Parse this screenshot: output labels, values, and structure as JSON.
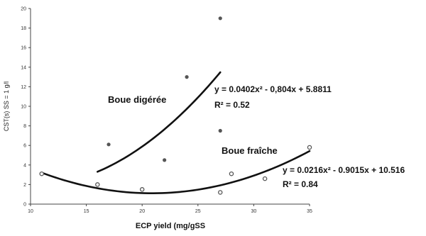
{
  "chart_data": {
    "type": "scatter",
    "title": "",
    "xlabel": "ECP yield (mg/gSS",
    "ylabel": "CST(s) SS = 1 g/l",
    "xlim": [
      10,
      35
    ],
    "ylim": [
      0,
      20
    ],
    "x_ticks": [
      10,
      15,
      20,
      25,
      30,
      35
    ],
    "y_ticks": [
      0,
      2,
      4,
      6,
      8,
      10,
      12,
      14,
      16,
      18,
      20
    ],
    "grid": false,
    "series": [
      {
        "name": "Boue digérée",
        "marker": "filled-circle",
        "color": "#555555",
        "points": [
          [
            17,
            6.1
          ],
          [
            22,
            4.5
          ],
          [
            24,
            13.0
          ],
          [
            27,
            19.0
          ],
          [
            27,
            7.5
          ]
        ],
        "trend": {
          "equation": "y = 0.0402x² - 0,804x + 5.8811",
          "r2_label": "R² = 0.52",
          "coefficients": [
            0.0402,
            -0.804,
            5.8811
          ],
          "x_range": [
            16,
            27
          ]
        }
      },
      {
        "name": "Boue fraîche",
        "marker": "open-circle",
        "color": "#555555",
        "points": [
          [
            11,
            3.1
          ],
          [
            16,
            2.0
          ],
          [
            20,
            1.5
          ],
          [
            27,
            1.2
          ],
          [
            28,
            3.1
          ],
          [
            31,
            2.6
          ],
          [
            35,
            5.8
          ]
        ],
        "trend": {
          "equation": "y = 0.0216x² - 0.9015x + 10.516",
          "r2_label": "R² = 0.84",
          "coefficients": [
            0.0216,
            -0.9015,
            10.516
          ],
          "x_range": [
            11,
            35
          ]
        }
      }
    ],
    "colors": {
      "axis": "#444444",
      "trend": "#111111"
    }
  }
}
